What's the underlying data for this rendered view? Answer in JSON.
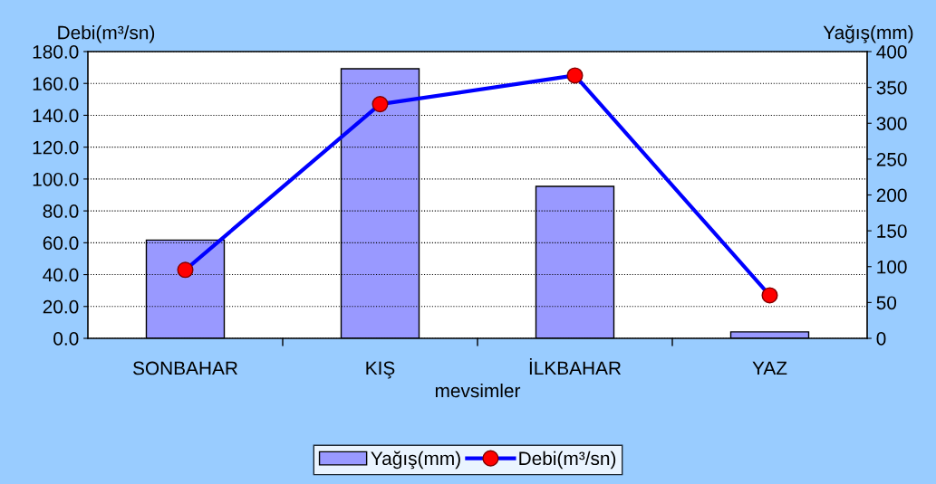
{
  "chart_data": {
    "type": "line",
    "xlabel": "mevsimler",
    "ylabel": "Debi(m³/sn)",
    "y2label": "Yağış(mm)",
    "categories": [
      "SONBAHAR",
      "KIŞ",
      "İLKBAHAR",
      "YAZ"
    ],
    "series": [
      {
        "name": "Yağış(mm)",
        "type": "bar",
        "axis": "y2",
        "color": "#9999ff",
        "values": [
          137,
          376,
          212,
          9
        ]
      },
      {
        "name": "Debi(m³/sn)",
        "axis": "y",
        "color": "#0000ff",
        "marker": "circle",
        "values": [
          43,
          147,
          165,
          27
        ]
      }
    ],
    "ylim": [
      0,
      180
    ],
    "yticks": [
      {
        "value": 0,
        "label": "0.0"
      },
      {
        "value": 20,
        "label": "20.0"
      },
      {
        "value": 40,
        "label": "40.0"
      },
      {
        "value": 60,
        "label": "60.0"
      },
      {
        "value": 80,
        "label": "80.0"
      },
      {
        "value": 100,
        "label": "100.0"
      },
      {
        "value": 120,
        "label": "120.0"
      },
      {
        "value": 140,
        "label": "140.0"
      },
      {
        "value": 160,
        "label": "160.0"
      },
      {
        "value": 180,
        "label": "180.0"
      }
    ],
    "y2lim": [
      0,
      400
    ],
    "y2ticks": [
      0,
      50,
      100,
      150,
      200,
      250,
      300,
      350,
      400
    ],
    "grid": "y",
    "legend": "bottom"
  }
}
